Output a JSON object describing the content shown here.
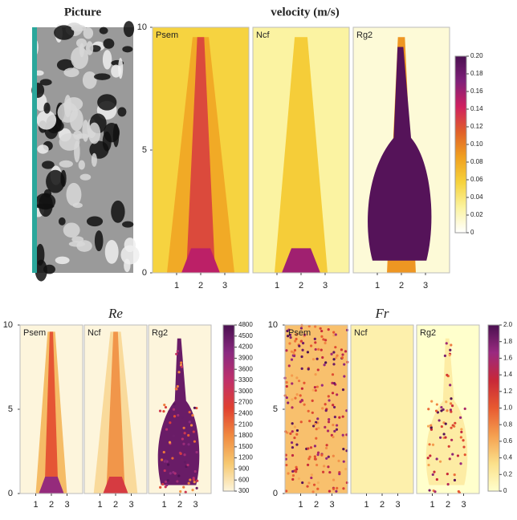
{
  "picture": {
    "title": "Picture"
  },
  "chart_data": [
    {
      "type": "heatmap",
      "title": "velocity (m/s)",
      "panels": [
        "Psem",
        "Ncf",
        "Rg2"
      ],
      "xlim": [
        0,
        4
      ],
      "xticks": [
        1,
        2,
        3
      ],
      "ylim": [
        0,
        10
      ],
      "yticks": [
        0,
        5,
        10
      ],
      "colorbar": {
        "lim": [
          0,
          0.2
        ],
        "ticks": [
          0,
          0.02,
          0.04,
          0.06,
          0.08,
          {
            "value": 0.1,
            "label": "0.10"
          },
          0.12,
          0.14,
          0.16,
          0.18,
          {
            "value": 0.2,
            "label": "0.20"
          }
        ],
        "colors": [
          "#ffffff",
          "#fbf3a0",
          "#f6d23c",
          "#f0a020",
          "#e0602a",
          "#d02060",
          "#80207a",
          "#4a1050"
        ]
      }
    },
    {
      "type": "heatmap",
      "title": "Re",
      "panels": [
        "Psem",
        "Ncf",
        "Rg2"
      ],
      "xlim": [
        0,
        4
      ],
      "xticks": [
        1,
        2,
        3
      ],
      "ylim": [
        0,
        10
      ],
      "yticks": [
        0,
        5,
        10
      ],
      "colorbar": {
        "lim": [
          300,
          4800
        ],
        "ticks": [
          300,
          600,
          900,
          1200,
          1500,
          1800,
          2100,
          2400,
          2700,
          3000,
          3300,
          3600,
          3900,
          4200,
          4500,
          4800
        ],
        "colors": [
          "#fdf5dc",
          "#f6c870",
          "#f08a40",
          "#e04030",
          "#c0306a",
          "#8a2a80",
          "#4a1050"
        ]
      }
    },
    {
      "type": "heatmap",
      "title": "Fr",
      "panels": [
        "Psem",
        "Ncf",
        "Rg2"
      ],
      "xlim": [
        0,
        4
      ],
      "xticks": [
        1,
        2,
        3
      ],
      "ylim": [
        0,
        10
      ],
      "yticks": [
        0,
        5,
        10
      ],
      "colorbar": {
        "lim": [
          0,
          2
        ],
        "ticks": [
          0,
          0.2,
          0.4,
          0.6,
          0.8,
          {
            "value": 1,
            "label": "1.0"
          },
          1.2,
          1.4,
          1.6,
          1.8,
          {
            "value": 2,
            "label": "2.0"
          }
        ],
        "colors": [
          "#ffffcc",
          "#fbe08a",
          "#f5a050",
          "#e85a30",
          "#c82838",
          "#9a2a80",
          "#4a1050"
        ]
      }
    }
  ]
}
